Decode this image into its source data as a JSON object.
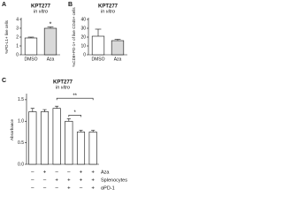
{
  "chart_data": [
    {
      "type": "bar",
      "panel": "A",
      "title": "KPT277",
      "subtitle": "in vitro",
      "y_label": "%PD-L1+ live cells",
      "categories": [
        "DMSO",
        "Aza"
      ],
      "values": [
        1.9,
        3.0
      ],
      "errors": [
        0.1,
        0.15
      ],
      "colors": [
        "#ffffff",
        "#d9d9d9"
      ],
      "ylim": [
        0,
        4
      ],
      "yticks": [
        0,
        1,
        2,
        3,
        4
      ],
      "annotations": [
        {
          "text": "*",
          "from": 1,
          "to": 1
        }
      ]
    },
    {
      "type": "bar",
      "panel": "B",
      "title": "KPT277",
      "subtitle": "in vitro",
      "y_label": "%CD8+PD-1+ of live CD45+ cells",
      "categories": [
        "DMSO",
        "Aza"
      ],
      "values": [
        21,
        16
      ],
      "errors": [
        8,
        1.5
      ],
      "colors": [
        "#ffffff",
        "#d9d9d9"
      ],
      "ylim": [
        0,
        40
      ],
      "yticks": [
        0,
        10,
        20,
        30,
        40
      ],
      "annotations": []
    },
    {
      "type": "bar",
      "panel": "C",
      "title": "KPT277",
      "subtitle": "in vitro",
      "y_label": "Absorbance",
      "categories": [
        null,
        null,
        null,
        null,
        null,
        null
      ],
      "values": [
        1.22,
        1.22,
        1.3,
        1.0,
        0.75,
        0.75
      ],
      "errors": [
        0.08,
        0.05,
        0.05,
        0.06,
        0.04,
        0.04
      ],
      "colors": [
        "#ffffff",
        "#ffffff",
        "#ffffff",
        "#ffffff",
        "#ffffff",
        "#ffffff"
      ],
      "ylim": [
        0,
        1.6
      ],
      "yticks": [
        {
          "value": 0,
          "label": "0.0"
        },
        {
          "value": 0.5,
          "label": "0.5"
        },
        {
          "value": 1,
          "label": "1.0"
        },
        {
          "value": 1.5,
          "label": "1.5"
        }
      ],
      "annotations": [
        {
          "text": "**",
          "from": 2,
          "to": 5
        },
        {
          "text": "*",
          "from": 3,
          "to": 4
        }
      ],
      "conditions": [
        {
          "name": "Aza",
          "signs": [
            "–",
            "+",
            "–",
            "–",
            "+",
            "+"
          ]
        },
        {
          "name": "Splenocytes",
          "signs": [
            "–",
            "–",
            "+",
            "+",
            "+",
            "+"
          ]
        },
        {
          "name": "αPD-1",
          "signs": [
            "–",
            "–",
            "–",
            "+",
            "–",
            "+"
          ]
        }
      ]
    }
  ]
}
